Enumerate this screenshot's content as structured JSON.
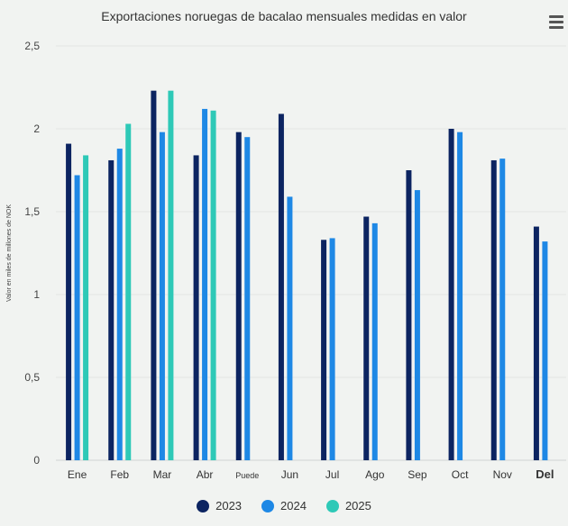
{
  "chart_data": {
    "type": "bar",
    "title": "Exportaciones noruegas de bacalao mensuales medidas en valor",
    "ylabel": "Valor en miles de millones de NOK",
    "xlabel": "",
    "ylim": [
      0,
      2.5
    ],
    "yticks": [
      "0",
      "0,5",
      "1",
      "1,5",
      "2",
      "2,5"
    ],
    "grid": true,
    "legend_position": "bottom",
    "categories": [
      "Ene",
      "Feb",
      "Mar",
      "Abr",
      "Puede",
      "Jun",
      "Jul",
      "Ago",
      "Sep",
      "Oct",
      "Nov",
      "Del"
    ],
    "series": [
      {
        "name": "2023",
        "color": "#0c2461",
        "values": [
          1.91,
          1.81,
          2.23,
          1.84,
          1.98,
          2.09,
          1.33,
          1.47,
          1.75,
          2.0,
          1.81,
          1.41
        ]
      },
      {
        "name": "2024",
        "color": "#1e88e5",
        "values": [
          1.72,
          1.88,
          1.98,
          2.12,
          1.95,
          1.59,
          1.34,
          1.43,
          1.63,
          1.98,
          1.82,
          1.32
        ]
      },
      {
        "name": "2025",
        "color": "#2ec9b7",
        "values": [
          1.84,
          2.03,
          2.23,
          2.11,
          null,
          null,
          null,
          null,
          null,
          null,
          null,
          null
        ]
      }
    ]
  },
  "menu": {
    "icon": "menu-icon"
  }
}
